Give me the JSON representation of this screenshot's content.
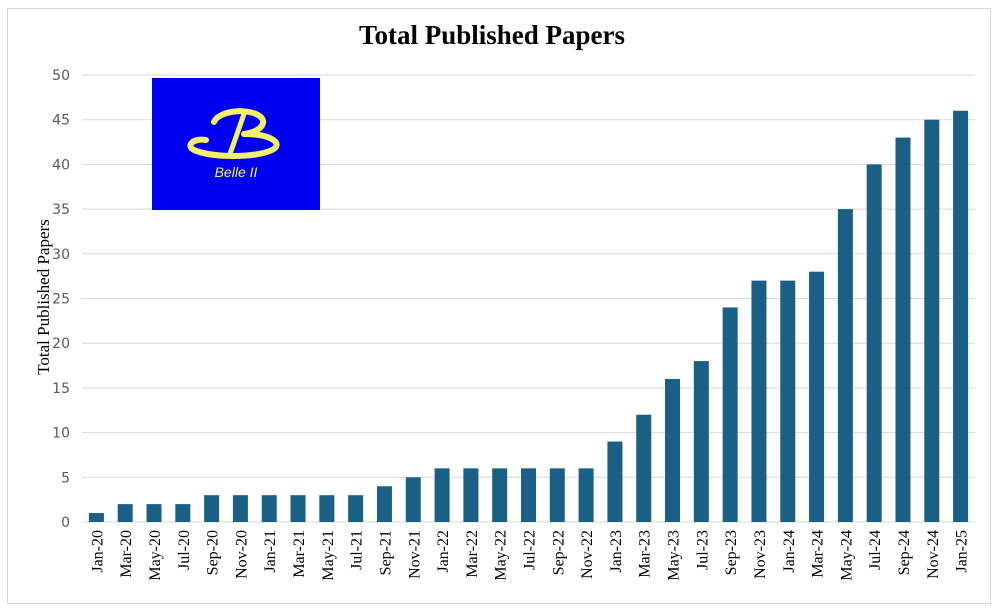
{
  "chart_data": {
    "type": "bar",
    "title": "Total Published Papers",
    "xlabel": "",
    "ylabel": "Total Published Papers",
    "ylim": [
      0,
      50
    ],
    "yticks": [
      0,
      5,
      10,
      15,
      20,
      25,
      30,
      35,
      40,
      45,
      50
    ],
    "grid": true,
    "legend": null,
    "bar_color": "#1a5f85",
    "categories": [
      "Jan-20",
      "Mar-20",
      "May-20",
      "Jul-20",
      "Sep-20",
      "Nov-20",
      "Jan-21",
      "Mar-21",
      "May-21",
      "Jul-21",
      "Sep-21",
      "Nov-21",
      "Jan-22",
      "Mar-22",
      "May-22",
      "Jul-22",
      "Sep-22",
      "Nov-22",
      "Jan-23",
      "Mar-23",
      "May-23",
      "Jul-23",
      "Sep-23",
      "Nov-23",
      "Jan-24",
      "Mar-24",
      "May-24",
      "Jul-24",
      "Sep-24",
      "Nov-24",
      "Jan-25"
    ],
    "values": [
      1,
      2,
      2,
      2,
      3,
      3,
      3,
      3,
      3,
      3,
      4,
      5,
      6,
      6,
      6,
      6,
      6,
      6,
      9,
      12,
      16,
      18,
      24,
      27,
      27,
      28,
      35,
      40,
      43,
      45,
      46
    ]
  },
  "logo": {
    "text": "Belle II",
    "background": "#0000f0",
    "color": "#f5f06a"
  }
}
